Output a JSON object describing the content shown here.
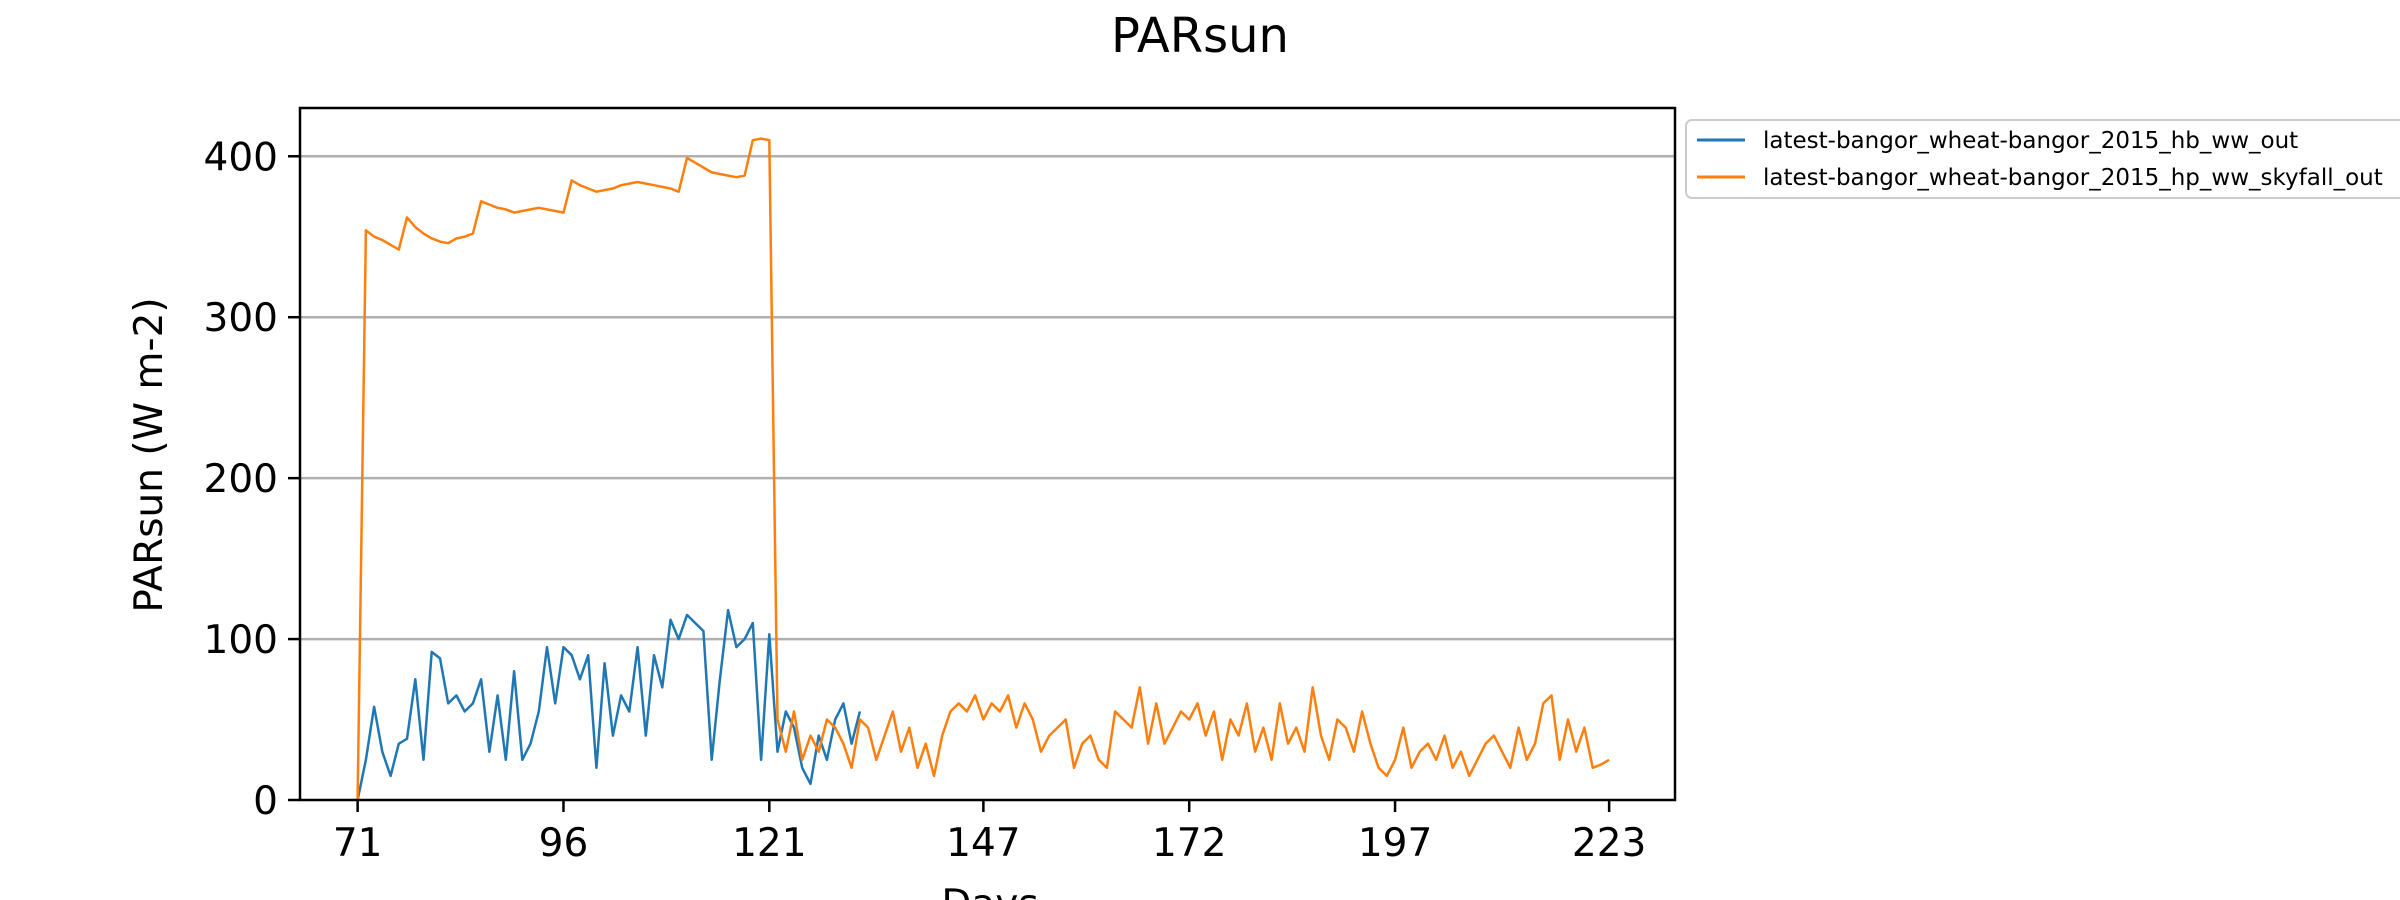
{
  "chart_data": {
    "type": "line",
    "title": "PARsun",
    "xlabel": "Days",
    "ylabel": "PARsun (W m-2)",
    "xlim": [
      64,
      231
    ],
    "ylim": [
      0,
      430
    ],
    "xticks": [
      71,
      96,
      121,
      147,
      172,
      197,
      223
    ],
    "yticks": [
      0,
      100,
      200,
      300,
      400
    ],
    "grid": "horizontal",
    "legend_position": "outside-top-right",
    "series": [
      {
        "name": "latest-bangor_wheat-bangor_2015_hb_ww_out",
        "color": "#1f77b4",
        "x": [
          71,
          72,
          73,
          74,
          75,
          76,
          77,
          78,
          79,
          80,
          81,
          82,
          83,
          84,
          85,
          86,
          87,
          88,
          89,
          90,
          91,
          92,
          93,
          94,
          95,
          96,
          97,
          98,
          99,
          100,
          101,
          102,
          103,
          104,
          105,
          106,
          107,
          108,
          109,
          110,
          111,
          112,
          113,
          114,
          115,
          116,
          117,
          118,
          119,
          120,
          121,
          122,
          123,
          124,
          125,
          126,
          127,
          128,
          129,
          130,
          131,
          132
        ],
        "y": [
          0,
          25,
          58,
          30,
          15,
          35,
          38,
          75,
          25,
          92,
          88,
          60,
          65,
          55,
          60,
          75,
          30,
          65,
          25,
          80,
          25,
          35,
          55,
          95,
          60,
          95,
          90,
          75,
          90,
          20,
          85,
          40,
          65,
          55,
          95,
          40,
          90,
          70,
          112,
          100,
          115,
          110,
          105,
          25,
          75,
          118,
          95,
          100,
          110,
          25,
          103,
          30,
          55,
          45,
          20,
          10,
          40,
          25,
          50,
          60,
          35,
          55
        ]
      },
      {
        "name": "latest-bangor_wheat-bangor_2015_hp_ww_skyfall_out",
        "color": "#ff7f0e",
        "x": [
          71,
          72,
          73,
          74,
          75,
          76,
          77,
          78,
          79,
          80,
          81,
          82,
          83,
          84,
          85,
          86,
          87,
          88,
          89,
          90,
          91,
          92,
          93,
          94,
          95,
          96,
          97,
          98,
          99,
          100,
          101,
          102,
          103,
          104,
          105,
          106,
          107,
          108,
          109,
          110,
          111,
          112,
          113,
          114,
          115,
          116,
          117,
          118,
          119,
          120,
          121,
          122,
          123,
          124,
          125,
          126,
          127,
          128,
          129,
          130,
          131,
          132,
          133,
          134,
          135,
          136,
          137,
          138,
          139,
          140,
          141,
          142,
          143,
          144,
          145,
          146,
          147,
          148,
          149,
          150,
          151,
          152,
          153,
          154,
          155,
          156,
          157,
          158,
          159,
          160,
          161,
          162,
          163,
          164,
          165,
          166,
          167,
          168,
          169,
          170,
          171,
          172,
          173,
          174,
          175,
          176,
          177,
          178,
          179,
          180,
          181,
          182,
          183,
          184,
          185,
          186,
          187,
          188,
          189,
          190,
          191,
          192,
          193,
          194,
          195,
          196,
          197,
          198,
          199,
          200,
          201,
          202,
          203,
          204,
          205,
          206,
          207,
          208,
          209,
          210,
          211,
          212,
          213,
          214,
          215,
          216,
          217,
          218,
          219,
          220,
          221,
          222,
          223
        ],
        "y": [
          0,
          354,
          350,
          348,
          345,
          342,
          362,
          356,
          352,
          349,
          347,
          346,
          349,
          350,
          352,
          372,
          370,
          368,
          367,
          365,
          366,
          367,
          368,
          367,
          366,
          365,
          385,
          382,
          380,
          378,
          379,
          380,
          382,
          383,
          384,
          383,
          382,
          381,
          380,
          378,
          399,
          396,
          393,
          390,
          389,
          388,
          387,
          388,
          410,
          411,
          410,
          50,
          30,
          55,
          25,
          40,
          30,
          50,
          45,
          35,
          20,
          50,
          45,
          25,
          40,
          55,
          30,
          45,
          20,
          35,
          15,
          40,
          55,
          60,
          55,
          65,
          50,
          60,
          55,
          65,
          45,
          60,
          50,
          30,
          40,
          45,
          50,
          20,
          35,
          40,
          25,
          20,
          55,
          50,
          45,
          70,
          35,
          60,
          35,
          45,
          55,
          50,
          60,
          40,
          55,
          25,
          50,
          40,
          60,
          30,
          45,
          25,
          60,
          35,
          45,
          30,
          70,
          40,
          25,
          50,
          45,
          30,
          55,
          35,
          20,
          15,
          25,
          45,
          20,
          30,
          35,
          25,
          40,
          20,
          30,
          15,
          25,
          35,
          40,
          30,
          20,
          45,
          25,
          35,
          60,
          65,
          25,
          50,
          30,
          45,
          20,
          22,
          25
        ]
      }
    ]
  }
}
